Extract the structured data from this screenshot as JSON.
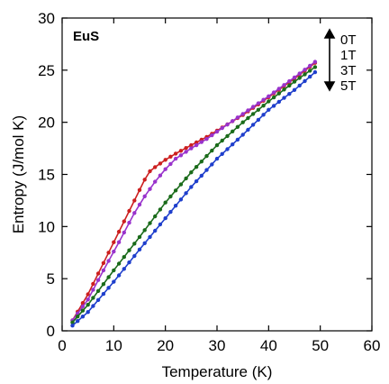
{
  "chart_data": {
    "type": "line",
    "annotation": "EuS",
    "xlabel": "Temperature (K)",
    "ylabel": "Entropy (J/mol K)",
    "xlim": [
      0,
      60
    ],
    "ylim": [
      0,
      30
    ],
    "xticks": [
      "0",
      "10",
      "20",
      "30",
      "40",
      "50",
      "60"
    ],
    "yticks": [
      "0",
      "5",
      "10",
      "15",
      "20",
      "25",
      "30"
    ],
    "grid": false,
    "legend_position": "top-right",
    "legend_arrow": "up-down",
    "series": [
      {
        "name": "0T",
        "color": "#cc1f1f",
        "marker": "circle",
        "points": [
          [
            2,
            1.0
          ],
          [
            5,
            3.5
          ],
          [
            8,
            6.5
          ],
          [
            11,
            9.5
          ],
          [
            14,
            12.5
          ],
          [
            16,
            14.5
          ],
          [
            17,
            15.3
          ],
          [
            18,
            15.7
          ],
          [
            20,
            16.4
          ],
          [
            22,
            17.0
          ],
          [
            25,
            17.8
          ],
          [
            28,
            18.6
          ],
          [
            30,
            19.2
          ],
          [
            35,
            20.7
          ],
          [
            40,
            22.4
          ],
          [
            45,
            24.2
          ],
          [
            49,
            25.7
          ]
        ]
      },
      {
        "name": "1T",
        "color": "#9933cc",
        "marker": "circle",
        "points": [
          [
            2,
            1.0
          ],
          [
            5,
            3.0
          ],
          [
            8,
            5.8
          ],
          [
            11,
            8.5
          ],
          [
            14,
            11.3
          ],
          [
            16,
            12.9
          ],
          [
            18,
            14.3
          ],
          [
            20,
            15.5
          ],
          [
            22,
            16.5
          ],
          [
            25,
            17.5
          ],
          [
            28,
            18.4
          ],
          [
            30,
            19.1
          ],
          [
            35,
            20.8
          ],
          [
            40,
            22.5
          ],
          [
            45,
            24.3
          ],
          [
            49,
            25.8
          ]
        ]
      },
      {
        "name": "3T",
        "color": "#1a6b1a",
        "marker": "circle",
        "points": [
          [
            2,
            0.8
          ],
          [
            5,
            2.5
          ],
          [
            10,
            5.8
          ],
          [
            15,
            9.0
          ],
          [
            20,
            12.3
          ],
          [
            25,
            15.2
          ],
          [
            30,
            17.8
          ],
          [
            35,
            20.0
          ],
          [
            40,
            22.0
          ],
          [
            45,
            23.9
          ],
          [
            49,
            25.3
          ]
        ]
      },
      {
        "name": "5T",
        "color": "#1f3fcc",
        "marker": "circle",
        "points": [
          [
            2,
            0.5
          ],
          [
            5,
            1.8
          ],
          [
            10,
            4.7
          ],
          [
            15,
            7.8
          ],
          [
            20,
            10.8
          ],
          [
            25,
            13.8
          ],
          [
            30,
            16.5
          ],
          [
            35,
            18.8
          ],
          [
            40,
            21.2
          ],
          [
            45,
            23.1
          ],
          [
            49,
            24.8
          ]
        ]
      }
    ]
  }
}
